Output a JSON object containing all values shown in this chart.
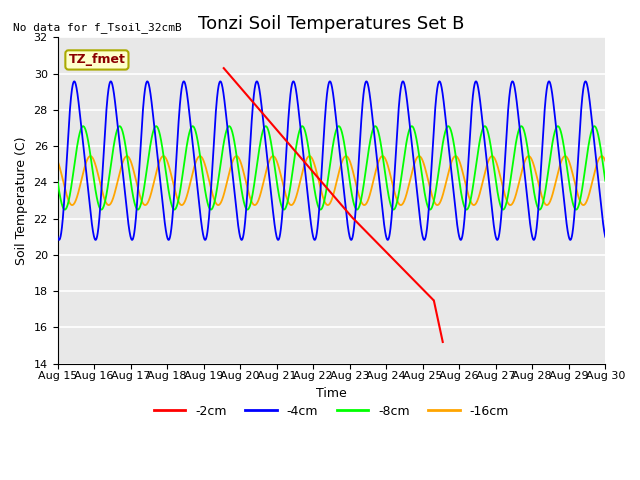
{
  "title": "Tonzi Soil Temperatures Set B",
  "ylabel": "Soil Temperature (C)",
  "xlabel": "Time",
  "no_data_text": "No data for f_Tsoil_32cmB",
  "tz_label": "TZ_fmet",
  "ylim": [
    14,
    32
  ],
  "xlim": [
    0,
    15
  ],
  "yticks": [
    14,
    16,
    18,
    20,
    22,
    24,
    26,
    28,
    30,
    32
  ],
  "xtick_labels": [
    "Aug 15",
    "Aug 16",
    "Aug 17",
    "Aug 18",
    "Aug 19",
    "Aug 20",
    "Aug 21",
    "Aug 22",
    "Aug 23",
    "Aug 24",
    "Aug 25",
    "Aug 26",
    "Aug 27",
    "Aug 28",
    "Aug 29",
    "Aug 30"
  ],
  "plot_bg_color": "#e8e8e8",
  "title_fontsize": 13,
  "label_fontsize": 9,
  "tick_fontsize": 8,
  "red_start_x": 4.55,
  "red_peak": 30.3,
  "red_mid_x": 8.1,
  "red_mid_y": 22.0,
  "red_bump_x": 10.3,
  "red_bump_y": 17.5,
  "red_end_x": 10.55,
  "red_end_y": 15.2
}
